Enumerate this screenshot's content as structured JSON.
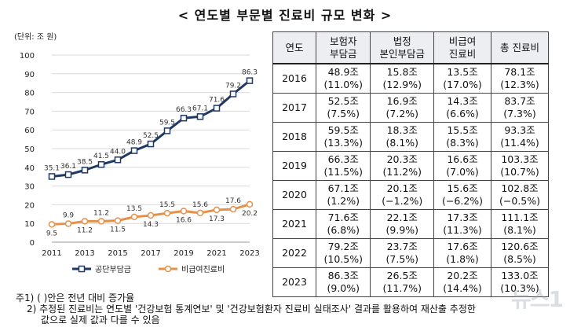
{
  "title": "< 연도별 부문별 진료비 규모 변화 >",
  "chart_data": {
    "type": "line",
    "unit_label": "(단위: 조 원)",
    "x": [
      2011,
      2012,
      2013,
      2014,
      2015,
      2016,
      2017,
      2018,
      2019,
      2020,
      2021,
      2022,
      2023
    ],
    "x_tick_labels": [
      "2011",
      "2013",
      "2015",
      "2017",
      "2019",
      "2021",
      "2023"
    ],
    "ylim": [
      0,
      100
    ],
    "y_ticks": [
      0,
      10,
      20,
      30,
      40,
      50,
      60,
      70,
      80,
      90,
      100
    ],
    "series": [
      {
        "name": "공단부담금",
        "marker": "square",
        "color": "#1f3864",
        "values": [
          35.1,
          36.1,
          38.5,
          41.5,
          44.0,
          48.9,
          52.5,
          59.5,
          66.3,
          67.1,
          71.6,
          79.2,
          86.3
        ],
        "labels": [
          "35.1",
          "36.1",
          "38.5",
          "41.5",
          "44.0",
          "48.9",
          "52.5",
          "59.5",
          "66.3",
          "67.1",
          "71.6",
          "79.2",
          "86.3"
        ]
      },
      {
        "name": "비급여진료비",
        "marker": "circle",
        "color": "#e6914a",
        "values": [
          9.5,
          9.9,
          11.2,
          11.2,
          11.5,
          13.5,
          14.3,
          15.5,
          16.6,
          15.6,
          17.3,
          17.6,
          20.2
        ],
        "labels": [
          "9.5",
          "9.9",
          "11.2",
          "11.2",
          "11.5",
          "13.5",
          "14.3",
          "15.5",
          "16.6",
          "15.6",
          "17.3",
          "17.6",
          "20.2"
        ]
      }
    ],
    "legend_position": "bottom"
  },
  "table": {
    "headers": [
      {
        "line1": "연도",
        "line2": ""
      },
      {
        "line1": "보험자",
        "line2": "부담금"
      },
      {
        "line1": "법정",
        "line2": "본인부담금"
      },
      {
        "line1": "비급여",
        "line2": "진료비"
      },
      {
        "line1": "총 진료비",
        "line2": ""
      }
    ],
    "rows": [
      {
        "year": "2016",
        "c1": [
          "48.9조",
          "(11.0%)"
        ],
        "c2": [
          "15.8조",
          "(12.9%)"
        ],
        "c3": [
          "13.5조",
          "(17.0%)"
        ],
        "c4": [
          "78.1조",
          "(12.3%)"
        ]
      },
      {
        "year": "2017",
        "c1": [
          "52.5조",
          "(7.5%)"
        ],
        "c2": [
          "16.9조",
          "(7.2%)"
        ],
        "c3": [
          "14.3조",
          "(6.6%)"
        ],
        "c4": [
          "83.7조",
          "(7.3%)"
        ]
      },
      {
        "year": "2018",
        "c1": [
          "59.5조",
          "(13.3%)"
        ],
        "c2": [
          "18.3조",
          "(8.1%)"
        ],
        "c3": [
          "15.5조",
          "(8.3%)"
        ],
        "c4": [
          "93.3조",
          "(11.4%)"
        ]
      },
      {
        "year": "2019",
        "c1": [
          "66.3조",
          "(11.5%)"
        ],
        "c2": [
          "20.3조",
          "(11.2%)"
        ],
        "c3": [
          "16.6조",
          "(7.0%)"
        ],
        "c4": [
          "103.3조",
          "(10.7%)"
        ]
      },
      {
        "year": "2020",
        "c1": [
          "67.1조",
          "(1.2%)"
        ],
        "c2": [
          "20.1조",
          "(−1.2%)"
        ],
        "c3": [
          "15.6조",
          "(−6.2%)"
        ],
        "c4": [
          "102.8조",
          "(−0.5%)"
        ]
      },
      {
        "year": "2021",
        "c1": [
          "71.6조",
          "(6.8%)"
        ],
        "c2": [
          "22.1조",
          "(9.9%)"
        ],
        "c3": [
          "17.3조",
          "(11.3%)"
        ],
        "c4": [
          "111.1조",
          "(8.1%)"
        ]
      },
      {
        "year": "2022",
        "c1": [
          "79.2조",
          "(10.5%)"
        ],
        "c2": [
          "23.7조",
          "(7.5%)"
        ],
        "c3": [
          "17.6조",
          "(1.8%)"
        ],
        "c4": [
          "120.6조",
          "(8.5%)"
        ]
      },
      {
        "year": "2023",
        "c1": [
          "86.3조",
          "(9.0%)"
        ],
        "c2": [
          "26.5조",
          "(11.7%)"
        ],
        "c3": [
          "20.2조",
          "(14.4%)"
        ],
        "c4": [
          "133.0조",
          "(10.3%)"
        ]
      }
    ]
  },
  "notes": {
    "note1": "주1) ( )안은 전년 대비 증가율",
    "note2_line1": "2) 추정된 진료비는 연도별 '건강보험 통계연보' 및 '건강보험환자 진료비 실태조사' 결과를 활용하여 재산출 추정한",
    "note2_line2": "값으로 실제 값과 다를 수 있음"
  },
  "watermark": "뉴스1"
}
